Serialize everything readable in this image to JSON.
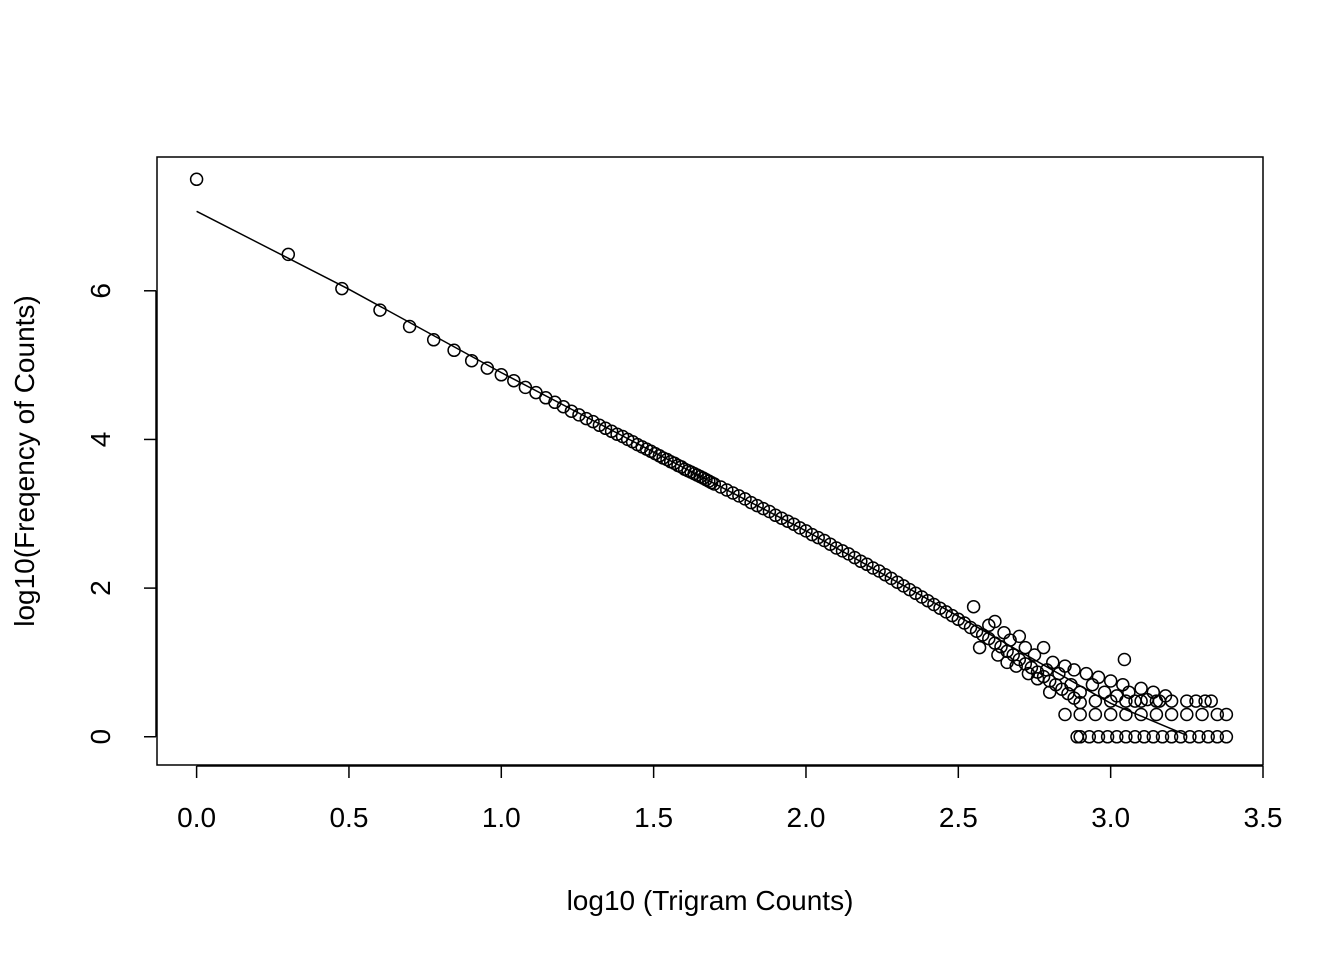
{
  "chart_data": {
    "type": "scatter",
    "title": "",
    "xlabel": "log10 (Trigram Counts)",
    "ylabel": "log10(Freqency of Counts)",
    "xlim": [
      -0.13,
      3.5
    ],
    "ylim": [
      -0.38,
      7.8
    ],
    "xticks": [
      0.0,
      0.5,
      1.0,
      1.5,
      2.0,
      2.5,
      3.0,
      3.5
    ],
    "xtick_labels": [
      "0.0",
      "0.5",
      "1.0",
      "1.5",
      "2.0",
      "2.5",
      "3.0",
      "3.5"
    ],
    "yticks": [
      0,
      2,
      4,
      6
    ],
    "ytick_labels": [
      "0",
      "2",
      "4",
      "6"
    ],
    "grid": false,
    "legend": "none",
    "point_marker": "open-circle",
    "series": [
      {
        "kind": "points",
        "points": [
          [
            0.0,
            7.5
          ],
          [
            0.301,
            6.49
          ],
          [
            0.477,
            6.03
          ],
          [
            0.602,
            5.74
          ],
          [
            0.699,
            5.52
          ],
          [
            0.778,
            5.34
          ],
          [
            0.845,
            5.2
          ],
          [
            0.903,
            5.06
          ],
          [
            0.954,
            4.96
          ],
          [
            1.0,
            4.87
          ],
          [
            1.041,
            4.79
          ],
          [
            1.079,
            4.7
          ],
          [
            1.114,
            4.63
          ],
          [
            1.146,
            4.56
          ],
          [
            1.176,
            4.5
          ],
          [
            1.204,
            4.44
          ],
          [
            1.23,
            4.38
          ],
          [
            1.255,
            4.33
          ],
          [
            1.279,
            4.28
          ],
          [
            1.301,
            4.24
          ],
          [
            1.322,
            4.19
          ],
          [
            1.342,
            4.15
          ],
          [
            1.362,
            4.11
          ],
          [
            1.38,
            4.07
          ],
          [
            1.398,
            4.04
          ],
          [
            1.415,
            4.0
          ],
          [
            1.431,
            3.97
          ],
          [
            1.447,
            3.93
          ],
          [
            1.462,
            3.9
          ],
          [
            1.477,
            3.87
          ],
          [
            1.491,
            3.84
          ],
          [
            1.505,
            3.81
          ],
          [
            1.519,
            3.78
          ],
          [
            1.531,
            3.75
          ],
          [
            1.544,
            3.73
          ],
          [
            1.556,
            3.7
          ],
          [
            1.568,
            3.68
          ],
          [
            1.58,
            3.65
          ],
          [
            1.591,
            3.63
          ],
          [
            1.602,
            3.6
          ],
          [
            1.613,
            3.58
          ],
          [
            1.623,
            3.56
          ],
          [
            1.633,
            3.54
          ],
          [
            1.643,
            3.52
          ],
          [
            1.653,
            3.5
          ],
          [
            1.663,
            3.48
          ],
          [
            1.672,
            3.46
          ],
          [
            1.681,
            3.44
          ],
          [
            1.69,
            3.42
          ],
          [
            1.699,
            3.4
          ],
          [
            1.72,
            3.36
          ],
          [
            1.74,
            3.32
          ],
          [
            1.76,
            3.28
          ],
          [
            1.78,
            3.24
          ],
          [
            1.8,
            3.2
          ],
          [
            1.82,
            3.15
          ],
          [
            1.84,
            3.11
          ],
          [
            1.86,
            3.07
          ],
          [
            1.88,
            3.03
          ],
          [
            1.9,
            2.98
          ],
          [
            1.92,
            2.94
          ],
          [
            1.94,
            2.9
          ],
          [
            1.96,
            2.86
          ],
          [
            1.98,
            2.81
          ],
          [
            2.0,
            2.77
          ],
          [
            2.02,
            2.72
          ],
          [
            2.04,
            2.68
          ],
          [
            2.06,
            2.64
          ],
          [
            2.08,
            2.59
          ],
          [
            2.1,
            2.54
          ],
          [
            2.12,
            2.5
          ],
          [
            2.14,
            2.46
          ],
          [
            2.16,
            2.41
          ],
          [
            2.18,
            2.36
          ],
          [
            2.2,
            2.32
          ],
          [
            2.22,
            2.27
          ],
          [
            2.24,
            2.23
          ],
          [
            2.26,
            2.18
          ],
          [
            2.28,
            2.13
          ],
          [
            2.3,
            2.08
          ],
          [
            2.32,
            2.03
          ],
          [
            2.34,
            1.98
          ],
          [
            2.36,
            1.93
          ],
          [
            2.38,
            1.88
          ],
          [
            2.4,
            1.83
          ],
          [
            2.42,
            1.78
          ],
          [
            2.44,
            1.73
          ],
          [
            2.46,
            1.68
          ],
          [
            2.48,
            1.63
          ],
          [
            2.5,
            1.58
          ],
          [
            2.52,
            1.53
          ],
          [
            2.54,
            1.47
          ],
          [
            2.56,
            1.42
          ],
          [
            2.58,
            1.37
          ],
          [
            2.6,
            1.32
          ],
          [
            2.62,
            1.26
          ],
          [
            2.64,
            1.21
          ],
          [
            2.66,
            1.15
          ],
          [
            2.68,
            1.1
          ],
          [
            2.7,
            1.04
          ],
          [
            2.72,
            0.98
          ],
          [
            2.74,
            0.93
          ],
          [
            2.76,
            0.87
          ],
          [
            2.78,
            0.81
          ],
          [
            2.8,
            0.75
          ],
          [
            2.82,
            0.7
          ],
          [
            2.84,
            0.64
          ],
          [
            2.86,
            0.58
          ],
          [
            2.88,
            0.52
          ],
          [
            2.9,
            0.46
          ],
          [
            2.55,
            1.75
          ],
          [
            2.57,
            1.2
          ],
          [
            2.6,
            1.5
          ],
          [
            2.62,
            1.55
          ],
          [
            2.63,
            1.1
          ],
          [
            2.65,
            1.4
          ],
          [
            2.66,
            1.0
          ],
          [
            2.67,
            1.3
          ],
          [
            2.69,
            0.95
          ],
          [
            2.7,
            1.35
          ],
          [
            2.72,
            1.2
          ],
          [
            2.73,
            0.85
          ],
          [
            2.75,
            1.1
          ],
          [
            2.76,
            0.78
          ],
          [
            2.78,
            1.2
          ],
          [
            2.79,
            0.9
          ],
          [
            2.8,
            0.6
          ],
          [
            2.81,
            1.0
          ],
          [
            2.83,
            0.85
          ],
          [
            2.85,
            0.95
          ],
          [
            2.87,
            0.7
          ],
          [
            2.88,
            0.9
          ],
          [
            2.9,
            0.6
          ],
          [
            2.92,
            0.85
          ],
          [
            2.94,
            0.7
          ],
          [
            2.96,
            0.8
          ],
          [
            2.98,
            0.6
          ],
          [
            3.0,
            0.75
          ],
          [
            3.02,
            0.55
          ],
          [
            3.04,
            0.7
          ],
          [
            3.045,
            1.04
          ],
          [
            3.06,
            0.6
          ],
          [
            3.08,
            0.48
          ],
          [
            3.1,
            0.65
          ],
          [
            3.12,
            0.5
          ],
          [
            3.14,
            0.6
          ],
          [
            3.16,
            0.48
          ],
          [
            3.18,
            0.55
          ],
          [
            2.85,
            0.3
          ],
          [
            2.9,
            0.3
          ],
          [
            2.95,
            0.3
          ],
          [
            3.0,
            0.3
          ],
          [
            3.05,
            0.3
          ],
          [
            3.1,
            0.3
          ],
          [
            3.15,
            0.3
          ],
          [
            3.2,
            0.3
          ],
          [
            3.25,
            0.3
          ],
          [
            3.3,
            0.3
          ],
          [
            3.35,
            0.3
          ],
          [
            3.38,
            0.3
          ],
          [
            2.95,
            0.48
          ],
          [
            3.0,
            0.48
          ],
          [
            3.05,
            0.48
          ],
          [
            3.1,
            0.48
          ],
          [
            3.15,
            0.48
          ],
          [
            3.2,
            0.48
          ],
          [
            3.25,
            0.48
          ],
          [
            3.28,
            0.48
          ],
          [
            3.31,
            0.48
          ],
          [
            3.33,
            0.48
          ],
          [
            2.89,
            0.0
          ],
          [
            2.9,
            0.0
          ],
          [
            2.93,
            0.0
          ],
          [
            2.96,
            0.0
          ],
          [
            2.99,
            0.0
          ],
          [
            3.02,
            0.0
          ],
          [
            3.05,
            0.0
          ],
          [
            3.08,
            0.0
          ],
          [
            3.11,
            0.0
          ],
          [
            3.14,
            0.0
          ],
          [
            3.17,
            0.0
          ],
          [
            3.2,
            0.0
          ],
          [
            3.23,
            0.0
          ],
          [
            3.26,
            0.0
          ],
          [
            3.29,
            0.0
          ],
          [
            3.32,
            0.0
          ],
          [
            3.35,
            0.0
          ],
          [
            3.38,
            0.0
          ]
        ]
      },
      {
        "kind": "line",
        "points": [
          [
            0.0,
            7.07
          ],
          [
            0.5,
            6.02
          ],
          [
            1.0,
            4.9
          ],
          [
            1.5,
            3.83
          ],
          [
            2.0,
            2.77
          ],
          [
            2.5,
            1.62
          ],
          [
            3.0,
            0.45
          ],
          [
            3.25,
            0.02
          ]
        ]
      }
    ]
  }
}
